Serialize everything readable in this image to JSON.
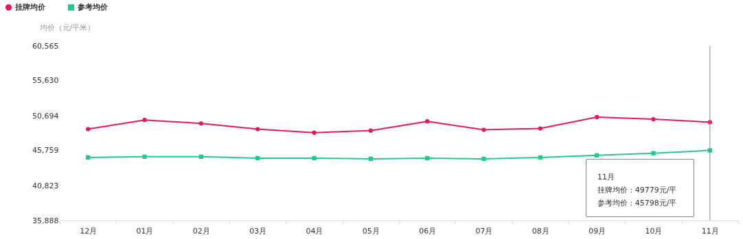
{
  "chart_data": {
    "type": "line",
    "ylabel": "均价（元/平米）",
    "categories": [
      "12月",
      "01月",
      "02月",
      "03月",
      "04月",
      "05月",
      "06月",
      "07月",
      "08月",
      "09月",
      "10月",
      "11月"
    ],
    "series": [
      {
        "name": "挂牌均价",
        "color": "#e8185a",
        "marker": "circle",
        "values": [
          48800,
          50100,
          49600,
          48800,
          48300,
          48600,
          49900,
          48700,
          48900,
          50500,
          50200,
          49779
        ]
      },
      {
        "name": "参考均价",
        "color": "#26c78f",
        "marker": "square",
        "values": [
          44800,
          44900,
          44900,
          44700,
          44700,
          44600,
          44700,
          44600,
          44800,
          45100,
          45400,
          45798
        ]
      }
    ],
    "ylim": [
      35888,
      60565
    ],
    "yticks": [
      {
        "value": 35888,
        "label": "35,888"
      },
      {
        "value": 40823,
        "label": "40,823"
      },
      {
        "value": 45759,
        "label": "45,759"
      },
      {
        "value": 50694,
        "label": "50,694"
      },
      {
        "value": 55630,
        "label": "55,630"
      },
      {
        "value": 60565,
        "label": "60,565"
      }
    ],
    "grid": false,
    "legend": "top left",
    "line_style": "solid",
    "ref_lines": [
      {
        "axis": "x",
        "value": "11月",
        "color": "#888888"
      }
    ],
    "annotations": [
      "11月",
      "挂牌均价 : 49779元/平",
      "参考均价 : 45798元/平"
    ]
  }
}
